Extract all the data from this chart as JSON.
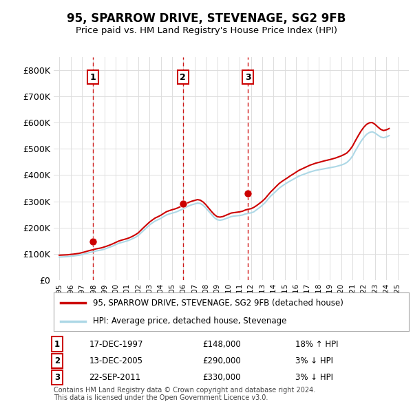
{
  "title": "95, SPARROW DRIVE, STEVENAGE, SG2 9FB",
  "subtitle": "Price paid vs. HM Land Registry's House Price Index (HPI)",
  "xlabel": "",
  "ylabel": "",
  "background_color": "#ffffff",
  "hpi_color": "#add8e6",
  "price_color": "#cc0000",
  "sale_marker_color": "#cc0000",
  "sale_dashed_color": "#cc0000",
  "sales": [
    {
      "label": "1",
      "date": "17-DEC-1997",
      "price": 148000,
      "hpi_pct": "18% ↑ HPI",
      "x_year": 1997.96
    },
    {
      "label": "2",
      "date": "13-DEC-2005",
      "price": 290000,
      "hpi_pct": "3% ↓ HPI",
      "x_year": 2005.96
    },
    {
      "label": "3",
      "date": "22-SEP-2011",
      "price": 330000,
      "hpi_pct": "3% ↓ HPI",
      "x_year": 2011.72
    }
  ],
  "legend_entries": [
    {
      "label": "95, SPARROW DRIVE, STEVENAGE, SG2 9FB (detached house)",
      "color": "#cc0000",
      "lw": 2
    },
    {
      "label": "HPI: Average price, detached house, Stevenage",
      "color": "#add8e6",
      "lw": 2
    }
  ],
  "footer": "Contains HM Land Registry data © Crown copyright and database right 2024.\nThis data is licensed under the Open Government Licence v3.0.",
  "ylim": [
    0,
    850000
  ],
  "yticks": [
    0,
    100000,
    200000,
    300000,
    400000,
    500000,
    600000,
    700000,
    800000
  ],
  "ytick_labels": [
    "£0",
    "£100K",
    "£200K",
    "£300K",
    "£400K",
    "£500K",
    "£600K",
    "£700K",
    "£800K"
  ],
  "xlim_start": 1994.5,
  "xlim_end": 2026.0,
  "hpi_data_x": [
    1995,
    1995.25,
    1995.5,
    1995.75,
    1996,
    1996.25,
    1996.5,
    1996.75,
    1997,
    1997.25,
    1997.5,
    1997.75,
    1998,
    1998.25,
    1998.5,
    1998.75,
    1999,
    1999.25,
    1999.5,
    1999.75,
    2000,
    2000.25,
    2000.5,
    2000.75,
    2001,
    2001.25,
    2001.5,
    2001.75,
    2002,
    2002.25,
    2002.5,
    2002.75,
    2003,
    2003.25,
    2003.5,
    2003.75,
    2004,
    2004.25,
    2004.5,
    2004.75,
    2005,
    2005.25,
    2005.5,
    2005.75,
    2006,
    2006.25,
    2006.5,
    2006.75,
    2007,
    2007.25,
    2007.5,
    2007.75,
    2008,
    2008.25,
    2008.5,
    2008.75,
    2009,
    2009.25,
    2009.5,
    2009.75,
    2010,
    2010.25,
    2010.5,
    2010.75,
    2011,
    2011.25,
    2011.5,
    2011.75,
    2012,
    2012.25,
    2012.5,
    2012.75,
    2013,
    2013.25,
    2013.5,
    2013.75,
    2014,
    2014.25,
    2014.5,
    2014.75,
    2015,
    2015.25,
    2015.5,
    2015.75,
    2016,
    2016.25,
    2016.5,
    2016.75,
    2017,
    2017.25,
    2017.5,
    2017.75,
    2018,
    2018.25,
    2018.5,
    2018.75,
    2019,
    2019.25,
    2019.5,
    2019.75,
    2020,
    2020.25,
    2020.5,
    2020.75,
    2021,
    2021.25,
    2021.5,
    2021.75,
    2022,
    2022.25,
    2022.5,
    2022.75,
    2023,
    2023.25,
    2023.5,
    2023.75,
    2024,
    2024.25
  ],
  "hpi_data_y": [
    88000,
    88500,
    89000,
    89500,
    91000,
    92000,
    93500,
    95000,
    97000,
    100000,
    103000,
    106000,
    108000,
    111000,
    113000,
    115000,
    118000,
    122000,
    126000,
    130000,
    135000,
    140000,
    143000,
    146000,
    149000,
    153000,
    158000,
    163000,
    170000,
    180000,
    190000,
    200000,
    210000,
    218000,
    225000,
    230000,
    235000,
    242000,
    248000,
    252000,
    255000,
    258000,
    262000,
    267000,
    272000,
    278000,
    283000,
    287000,
    290000,
    293000,
    292000,
    285000,
    275000,
    262000,
    250000,
    238000,
    230000,
    228000,
    230000,
    234000,
    238000,
    242000,
    244000,
    245000,
    246000,
    248000,
    252000,
    254000,
    256000,
    260000,
    268000,
    276000,
    285000,
    295000,
    308000,
    320000,
    330000,
    340000,
    350000,
    358000,
    365000,
    372000,
    378000,
    384000,
    390000,
    396000,
    400000,
    404000,
    408000,
    412000,
    415000,
    418000,
    420000,
    422000,
    424000,
    426000,
    428000,
    430000,
    432000,
    435000,
    438000,
    442000,
    448000,
    458000,
    472000,
    492000,
    510000,
    528000,
    543000,
    555000,
    562000,
    565000,
    560000,
    552000,
    545000,
    542000,
    545000,
    550000
  ],
  "price_data_x": [
    1995,
    1995.25,
    1995.5,
    1995.75,
    1996,
    1996.25,
    1996.5,
    1996.75,
    1997,
    1997.25,
    1997.5,
    1997.75,
    1998,
    1998.25,
    1998.5,
    1998.75,
    1999,
    1999.25,
    1999.5,
    1999.75,
    2000,
    2000.25,
    2000.5,
    2000.75,
    2001,
    2001.25,
    2001.5,
    2001.75,
    2002,
    2002.25,
    2002.5,
    2002.75,
    2003,
    2003.25,
    2003.5,
    2003.75,
    2004,
    2004.25,
    2004.5,
    2004.75,
    2005,
    2005.25,
    2005.5,
    2005.75,
    2006,
    2006.25,
    2006.5,
    2006.75,
    2007,
    2007.25,
    2007.5,
    2007.75,
    2008,
    2008.25,
    2008.5,
    2008.75,
    2009,
    2009.25,
    2009.5,
    2009.75,
    2010,
    2010.25,
    2010.5,
    2010.75,
    2011,
    2011.25,
    2011.5,
    2011.75,
    2012,
    2012.25,
    2012.5,
    2012.75,
    2013,
    2013.25,
    2013.5,
    2013.75,
    2014,
    2014.25,
    2014.5,
    2014.75,
    2015,
    2015.25,
    2015.5,
    2015.75,
    2016,
    2016.25,
    2016.5,
    2016.75,
    2017,
    2017.25,
    2017.5,
    2017.75,
    2018,
    2018.25,
    2018.5,
    2018.75,
    2019,
    2019.25,
    2019.5,
    2019.75,
    2020,
    2020.25,
    2020.5,
    2020.75,
    2021,
    2021.25,
    2021.5,
    2021.75,
    2022,
    2022.25,
    2022.5,
    2022.75,
    2023,
    2023.25,
    2023.5,
    2023.75,
    2024,
    2024.25
  ],
  "price_data_y": [
    95000,
    95500,
    96000,
    96500,
    98000,
    99000,
    100500,
    102000,
    104500,
    107500,
    110500,
    113500,
    116000,
    119000,
    121000,
    123000,
    126500,
    130000,
    134000,
    138500,
    143500,
    148500,
    152000,
    155000,
    158000,
    162000,
    167000,
    173000,
    180000,
    190500,
    201000,
    211000,
    221000,
    229000,
    236500,
    241500,
    247000,
    254000,
    260500,
    264500,
    268000,
    271000,
    275000,
    280000,
    285000,
    291000,
    296500,
    300500,
    303500,
    306500,
    304500,
    297500,
    287000,
    274000,
    261000,
    249500,
    241500,
    240000,
    242000,
    246500,
    251000,
    255500,
    257000,
    258500,
    260000,
    262500,
    267000,
    270000,
    272000,
    277000,
    284000,
    292000,
    300500,
    310500,
    323500,
    336000,
    346500,
    357500,
    368000,
    376000,
    383000,
    390000,
    397500,
    404000,
    411000,
    418000,
    423000,
    428000,
    433000,
    438000,
    441500,
    445500,
    448000,
    451000,
    454000,
    456500,
    459000,
    462000,
    465000,
    469000,
    473000,
    478000,
    484000,
    495000,
    510000,
    530000,
    549000,
    567000,
    582000,
    593000,
    599000,
    600000,
    593000,
    583000,
    574000,
    569500,
    572000,
    577000
  ]
}
